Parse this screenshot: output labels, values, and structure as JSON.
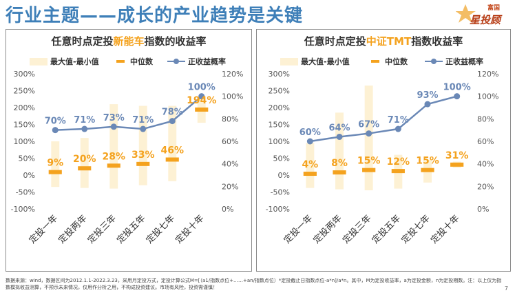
{
  "header": {
    "title": "行业主题——成长的产业趋势是关键",
    "logo_small": "富国",
    "logo_big": "星投顾"
  },
  "legend": {
    "range": "最大值-最小值",
    "median": "中位数",
    "positive_rate": "正收益概率"
  },
  "colors": {
    "range_bar": "#fdf1d4",
    "median": "#f4a21e",
    "line": "#6a88b6",
    "median_label": "#f4a21e",
    "rate_label": "#6a88b6"
  },
  "chart_data": [
    {
      "type": "bar",
      "title_prefix": "任意时点定投",
      "title_highlight": "新能车",
      "title_suffix": "指数的收益率",
      "categories": [
        "定投一年",
        "定投两年",
        "定投三年",
        "定投五年",
        "定投七年",
        "定投十年"
      ],
      "range_max": [
        100,
        110,
        210,
        205,
        205,
        230
      ],
      "range_min": [
        -35,
        -38,
        -40,
        -30,
        -18,
        155
      ],
      "median": [
        9,
        20,
        28,
        33,
        46,
        194
      ],
      "median_labels": [
        "9%",
        "20%",
        "28%",
        "33%",
        "46%",
        "194%"
      ],
      "positive_rate": [
        70,
        71,
        73,
        71,
        78,
        100
      ],
      "positive_rate_labels": [
        "70%",
        "71%",
        "73%",
        "71%",
        "78%",
        "100%"
      ],
      "y_left_ticks": [
        "-100%",
        "-50%",
        "0%",
        "50%",
        "100%",
        "150%",
        "200%",
        "250%",
        "300%"
      ],
      "y_right_ticks": [
        "0%",
        "20%",
        "40%",
        "60%",
        "80%",
        "100%",
        "120%"
      ],
      "ylim_left": [
        -100,
        300
      ],
      "ylim_right": [
        0,
        120
      ]
    },
    {
      "type": "bar",
      "title_prefix": "任意时点定投",
      "title_highlight": "中证TMT",
      "title_suffix": "指数收益率",
      "categories": [
        "定投一年",
        "定投两年",
        "定投三年",
        "定投五年",
        "定投七年",
        "定投十年"
      ],
      "range_max": [
        95,
        185,
        265,
        60,
        45,
        40
      ],
      "range_min": [
        -38,
        -42,
        -45,
        -40,
        -22,
        22
      ],
      "median": [
        4,
        8,
        15,
        12,
        15,
        31
      ],
      "median_labels": [
        "4%",
        "8%",
        "15%",
        "12%",
        "15%",
        "31%"
      ],
      "positive_rate": [
        60,
        64,
        67,
        71,
        93,
        100
      ],
      "positive_rate_labels": [
        "60%",
        "64%",
        "67%",
        "71%",
        "93%",
        "100%"
      ],
      "y_left_ticks": [
        "-100%",
        "-50%",
        "0%",
        "50%",
        "100%",
        "150%",
        "200%",
        "250%",
        "300%"
      ],
      "y_right_ticks": [
        "0%",
        "20%",
        "40%",
        "60%",
        "80%",
        "100%",
        "120%"
      ],
      "ylim_left": [
        -100,
        300
      ],
      "ylim_right": [
        0,
        120
      ]
    }
  ],
  "footer": {
    "note": "数据来源：wind，数据区间为2012.1.1-2022.3.23，采用月定投方式，定投计算公式M=[（a1/指数点位+……+an/指数点位）*定投截止日指数点位-a*n]/a*n。其中，M为定投收益率，a为定投金额，n为定投期数。注：以上仅为指数模拟收益测算，不预示未来情况，仅用作分析之用，不构成投资建议。市场有风险，投资需谨慎！",
    "page": "7"
  }
}
